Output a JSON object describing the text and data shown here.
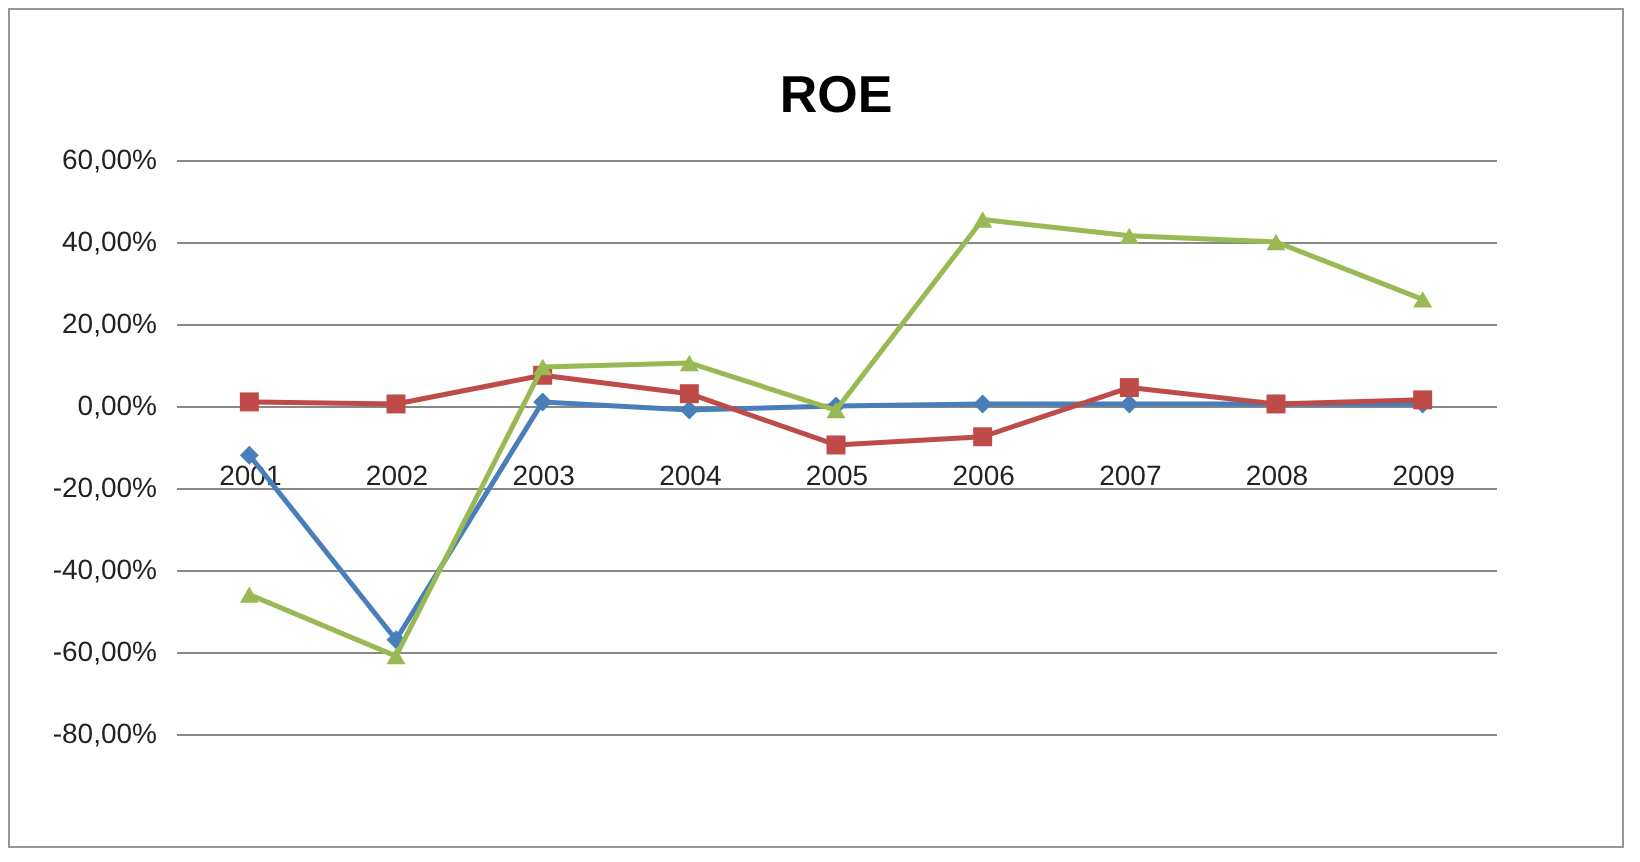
{
  "chart_data": {
    "type": "line",
    "title": "ROE",
    "categories": [
      "2001",
      "2002",
      "2003",
      "2004",
      "2005",
      "2006",
      "2007",
      "2008",
      "2009"
    ],
    "series": [
      {
        "color": "#4a7ebb",
        "marker": "diamond",
        "values": [
          -12,
          -57,
          1,
          -1,
          0,
          0.5,
          0.5,
          0.5,
          0.5
        ]
      },
      {
        "color": "#be4b48",
        "marker": "square",
        "values": [
          1,
          0.5,
          7.5,
          3,
          -9.5,
          -7.5,
          4.5,
          0.5,
          1.5
        ]
      },
      {
        "color": "#98b954",
        "marker": "triangle",
        "values": [
          -46,
          -61,
          9.5,
          10.5,
          -1,
          45.5,
          41.5,
          40,
          26
        ]
      }
    ],
    "ylim": [
      -80,
      60
    ],
    "yticks": [
      {
        "value": -80,
        "label": "-80,00%"
      },
      {
        "value": -60,
        "label": "-60,00%"
      },
      {
        "value": -40,
        "label": "-40,00%"
      },
      {
        "value": -20,
        "label": "-20,00%"
      },
      {
        "value": 0,
        "label": "0,00%"
      },
      {
        "value": 20,
        "label": "20,00%"
      },
      {
        "value": 40,
        "label": "40,00%"
      },
      {
        "value": 60,
        "label": "60,00%"
      }
    ],
    "grid": "y"
  }
}
